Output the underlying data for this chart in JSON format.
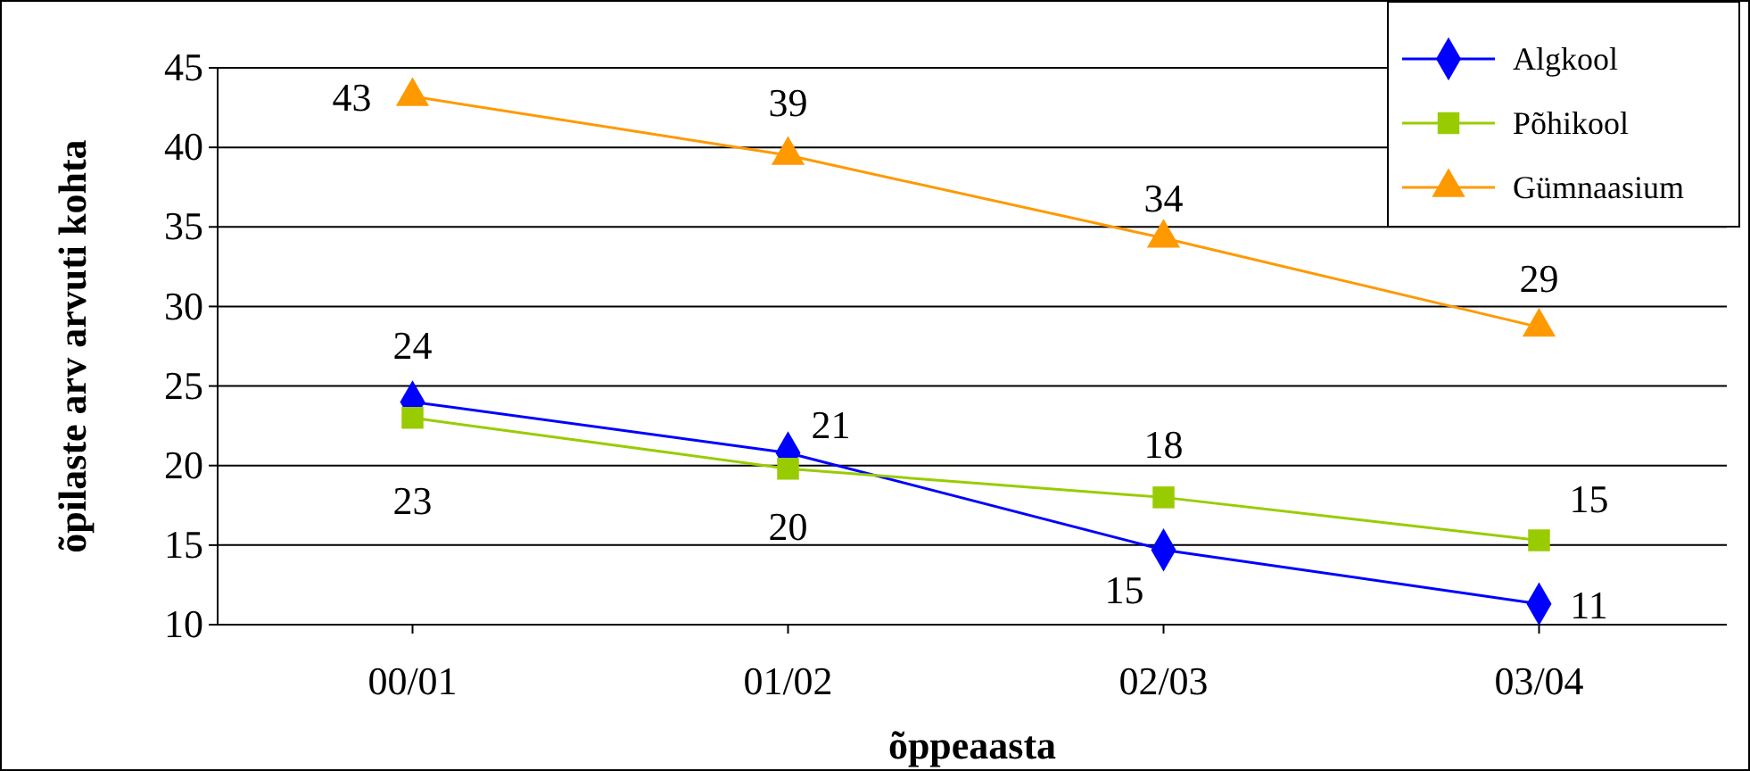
{
  "chart_data": {
    "type": "line",
    "xlabel": "õppeaasta",
    "ylabel": "õpilaste arv arvuti kohta",
    "categories": [
      "00/01",
      "01/02",
      "02/03",
      "03/04"
    ],
    "series": [
      {
        "name": "Algkool",
        "color": "#0000ff",
        "marker": "diamond",
        "values": [
          24,
          20.8,
          14.7,
          11.3
        ],
        "value_labels": [
          "24",
          "21",
          "15",
          "11"
        ]
      },
      {
        "name": "Põhikool",
        "color": "#99cc00",
        "marker": "square",
        "values": [
          23,
          19.8,
          18,
          15.3
        ],
        "value_labels": [
          "23",
          "20",
          "18",
          "15"
        ]
      },
      {
        "name": "Gümnaasium",
        "color": "#ff9900",
        "marker": "triangle",
        "values": [
          43.2,
          39.5,
          34.3,
          28.7
        ],
        "value_labels": [
          "43",
          "39",
          "34",
          "29"
        ]
      }
    ],
    "ylim": [
      10,
      45
    ],
    "yticks": [
      10,
      15,
      20,
      25,
      30,
      35,
      40,
      45
    ],
    "grid": "y",
    "legend": "top right"
  }
}
